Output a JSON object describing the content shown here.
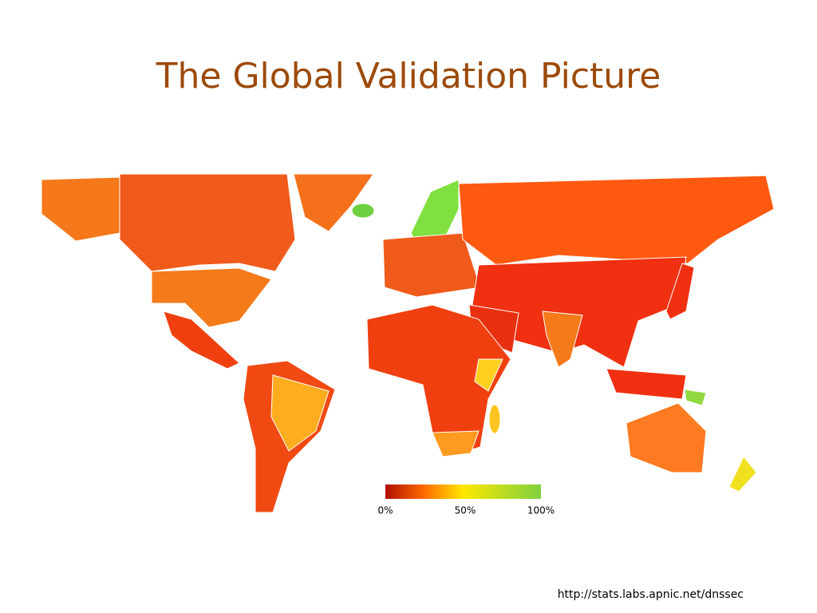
{
  "title": "The Global Validation Picture",
  "legend": {
    "labels": [
      "0%",
      "50%",
      "100%"
    ]
  },
  "source": "http://stats.labs.apnic.net/dnssec"
}
